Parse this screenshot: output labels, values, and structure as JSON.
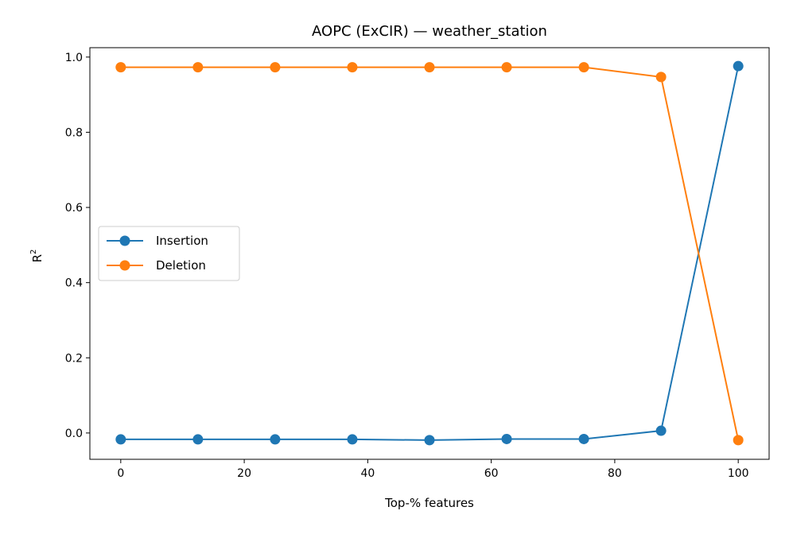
{
  "chart_data": {
    "type": "line",
    "title": "AOPC (ExCIR) — weather_station",
    "xlabel": "Top-% features",
    "ylabel": "R",
    "ylabel_superscript": "2",
    "xlim": [
      -5,
      105
    ],
    "ylim": [
      -0.07,
      1.025
    ],
    "xticks": [
      0,
      20,
      40,
      60,
      80,
      100
    ],
    "yticks": [
      0.0,
      0.2,
      0.4,
      0.6,
      0.8,
      1.0
    ],
    "xtick_labels": [
      "0",
      "20",
      "40",
      "60",
      "80",
      "100"
    ],
    "ytick_labels": [
      "0.0",
      "0.2",
      "0.4",
      "0.6",
      "0.8",
      "1.0"
    ],
    "x": [
      0,
      12.5,
      25,
      37.5,
      50,
      62.5,
      75,
      87.5,
      100
    ],
    "series": [
      {
        "name": "Insertion",
        "color": "#1f77b4",
        "values": [
          -0.017,
          -0.017,
          -0.017,
          -0.017,
          -0.019,
          -0.016,
          -0.016,
          0.006,
          0.976
        ]
      },
      {
        "name": "Deletion",
        "color": "#ff7f0e",
        "values": [
          0.973,
          0.973,
          0.973,
          0.973,
          0.973,
          0.973,
          0.973,
          0.947,
          -0.019
        ]
      }
    ],
    "legend": "center-left",
    "grid": false
  }
}
